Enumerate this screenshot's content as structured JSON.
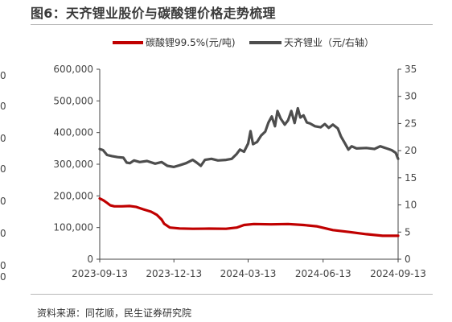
{
  "header": {
    "title": "图6：天齐锂业股价与碳酸锂价格走势梳理"
  },
  "footer": {
    "source": "资料来源：同花顺，民生证券研究院"
  },
  "left_crop_glyphs": [
    "0",
    "0",
    "0",
    "0",
    "0",
    "0",
    "0",
    "0",
    "3"
  ],
  "chart_data": {
    "type": "line",
    "title": "图6：天齐锂业股价与碳酸锂价格走势梳理",
    "x_ticks": [
      "2023-09-13",
      "2023-12-13",
      "2024-03-13",
      "2024-06-13",
      "2024-09-13"
    ],
    "x_range": [
      "2023-09-13",
      "2024-09-13"
    ],
    "y_left": {
      "ticks": [
        "0",
        "100,000",
        "200,000",
        "300,000",
        "400,000",
        "500,000",
        "600,000"
      ],
      "range": [
        0,
        600000
      ]
    },
    "y_right": {
      "ticks": [
        "0",
        "5",
        "10",
        "15",
        "20",
        "25",
        "30",
        "35"
      ],
      "range": [
        0,
        35
      ]
    },
    "legend_position": "top",
    "grid": false,
    "series": [
      {
        "name": "碳酸锂99.5%(元/吨)",
        "axis": "left",
        "color": "#c00000",
        "points": [
          [
            "2023-09-13",
            192000
          ],
          [
            "2023-09-18",
            185000
          ],
          [
            "2023-09-22",
            178000
          ],
          [
            "2023-09-26",
            170000
          ],
          [
            "2023-10-01",
            167000
          ],
          [
            "2023-10-10",
            167000
          ],
          [
            "2023-10-20",
            168000
          ],
          [
            "2023-10-28",
            165000
          ],
          [
            "2023-11-05",
            158000
          ],
          [
            "2023-11-15",
            150000
          ],
          [
            "2023-11-22",
            140000
          ],
          [
            "2023-11-28",
            125000
          ],
          [
            "2023-12-01",
            112000
          ],
          [
            "2023-12-08",
            100000
          ],
          [
            "2023-12-20",
            97000
          ],
          [
            "2024-01-05",
            96000
          ],
          [
            "2024-01-25",
            96500
          ],
          [
            "2024-02-15",
            96000
          ],
          [
            "2024-02-28",
            100000
          ],
          [
            "2024-03-08",
            108000
          ],
          [
            "2024-03-20",
            111000
          ],
          [
            "2024-04-10",
            110000
          ],
          [
            "2024-05-01",
            111000
          ],
          [
            "2024-05-20",
            108000
          ],
          [
            "2024-06-05",
            104000
          ],
          [
            "2024-06-25",
            92000
          ],
          [
            "2024-07-15",
            86000
          ],
          [
            "2024-08-05",
            79000
          ],
          [
            "2024-08-25",
            74000
          ],
          [
            "2024-09-13",
            74000
          ]
        ]
      },
      {
        "name": "天齐锂业（元/右轴）",
        "axis": "right",
        "color": "#4d4d4d",
        "points": [
          [
            "2023-09-13",
            20.3
          ],
          [
            "2023-09-17",
            20.1
          ],
          [
            "2023-09-22",
            19.2
          ],
          [
            "2023-09-28",
            19.0
          ],
          [
            "2023-10-05",
            18.8
          ],
          [
            "2023-10-12",
            18.7
          ],
          [
            "2023-10-16",
            17.8
          ],
          [
            "2023-10-20",
            17.7
          ],
          [
            "2023-10-25",
            18.2
          ],
          [
            "2023-11-01",
            17.9
          ],
          [
            "2023-11-10",
            18.1
          ],
          [
            "2023-11-20",
            17.6
          ],
          [
            "2023-11-28",
            17.9
          ],
          [
            "2023-12-05",
            17.2
          ],
          [
            "2023-12-13",
            17.0
          ],
          [
            "2023-12-20",
            17.3
          ],
          [
            "2023-12-28",
            17.7
          ],
          [
            "2024-01-05",
            18.3
          ],
          [
            "2024-01-10",
            17.8
          ],
          [
            "2024-01-15",
            17.2
          ],
          [
            "2024-01-20",
            18.3
          ],
          [
            "2024-01-28",
            18.5
          ],
          [
            "2024-02-05",
            18.2
          ],
          [
            "2024-02-15",
            18.3
          ],
          [
            "2024-02-22",
            18.5
          ],
          [
            "2024-02-28",
            19.4
          ],
          [
            "2024-03-03",
            20.2
          ],
          [
            "2024-03-08",
            19.8
          ],
          [
            "2024-03-13",
            21.3
          ],
          [
            "2024-03-16",
            23.6
          ],
          [
            "2024-03-19",
            21.2
          ],
          [
            "2024-03-24",
            21.6
          ],
          [
            "2024-03-29",
            22.8
          ],
          [
            "2024-04-03",
            23.5
          ],
          [
            "2024-04-07",
            25.2
          ],
          [
            "2024-04-11",
            26.3
          ],
          [
            "2024-04-15",
            24.5
          ],
          [
            "2024-04-18",
            27.3
          ],
          [
            "2024-04-22",
            25.9
          ],
          [
            "2024-04-27",
            24.8
          ],
          [
            "2024-05-01",
            25.6
          ],
          [
            "2024-05-05",
            27.3
          ],
          [
            "2024-05-09",
            25.1
          ],
          [
            "2024-05-13",
            27.8
          ],
          [
            "2024-05-16",
            26.1
          ],
          [
            "2024-05-20",
            26.5
          ],
          [
            "2024-05-24",
            25.2
          ],
          [
            "2024-05-28",
            25.0
          ],
          [
            "2024-06-03",
            24.5
          ],
          [
            "2024-06-10",
            24.3
          ],
          [
            "2024-06-15",
            24.9
          ],
          [
            "2024-06-20",
            24.2
          ],
          [
            "2024-06-25",
            24.8
          ],
          [
            "2024-07-01",
            24.1
          ],
          [
            "2024-07-05",
            22.6
          ],
          [
            "2024-07-10",
            21.3
          ],
          [
            "2024-07-14",
            20.2
          ],
          [
            "2024-07-18",
            20.8
          ],
          [
            "2024-07-24",
            20.4
          ],
          [
            "2024-08-05",
            20.5
          ],
          [
            "2024-08-15",
            20.3
          ],
          [
            "2024-08-22",
            20.8
          ],
          [
            "2024-08-30",
            20.4
          ],
          [
            "2024-09-05",
            20.1
          ],
          [
            "2024-09-10",
            19.6
          ],
          [
            "2024-09-13",
            18.5
          ]
        ]
      }
    ]
  }
}
